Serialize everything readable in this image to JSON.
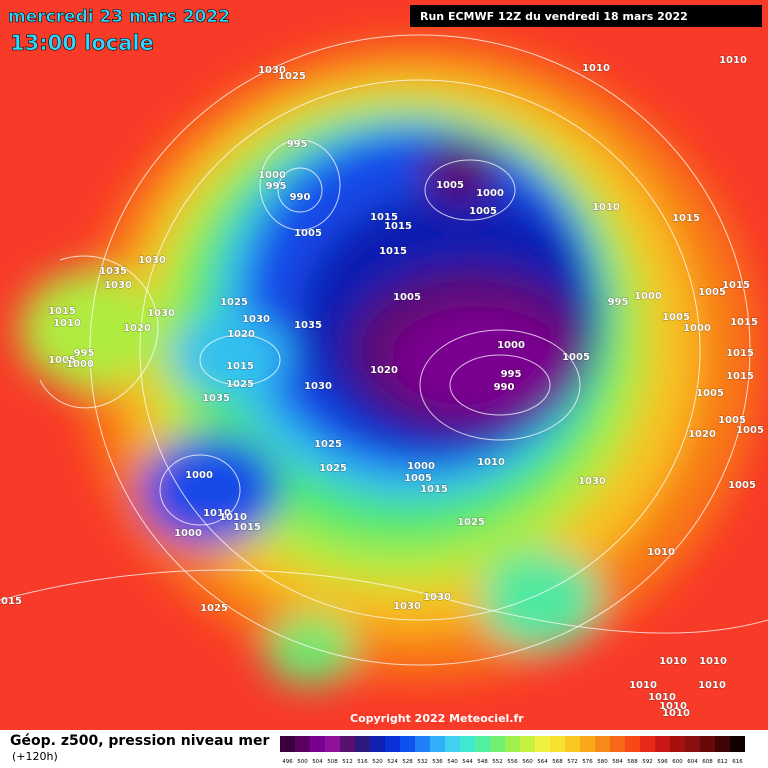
{
  "header": {
    "date": "mercredi 23 mars 2022",
    "time": "13:00 locale",
    "run": "Run ECMWF 12Z du vendredi 18 mars 2022"
  },
  "copyright": "Copyright 2022 Meteociel.fr",
  "footer": {
    "title": "Géop. z500, pression niveau mer",
    "lead": "(+120h)"
  },
  "colorbar": {
    "ticks": [
      496,
      500,
      504,
      508,
      512,
      516,
      520,
      524,
      528,
      532,
      536,
      540,
      544,
      548,
      552,
      556,
      560,
      564,
      568,
      572,
      576,
      580,
      584,
      588,
      592,
      596,
      600,
      604,
      608,
      612,
      616
    ],
    "colors": [
      "#3a0040",
      "#5a0060",
      "#7a0090",
      "#90109a",
      "#5a106e",
      "#2a1a80",
      "#1020b0",
      "#0a30d8",
      "#1050f0",
      "#2080f8",
      "#30b0f8",
      "#40d0f0",
      "#40e8d0",
      "#50f0a0",
      "#70f070",
      "#a0f050",
      "#c8f040",
      "#f0f040",
      "#f8e030",
      "#f8c820",
      "#f8a818",
      "#f88818",
      "#f86818",
      "#f84818",
      "#e82818",
      "#c81818",
      "#a81010",
      "#881010",
      "#680808",
      "#400404",
      "#100000"
    ]
  },
  "labels": [
    1030,
    1025,
    1010,
    1010,
    995,
    1000,
    995,
    990,
    1005,
    1000,
    1005,
    1010,
    1015,
    1015,
    1015,
    1005,
    1015,
    1030,
    1035,
    1030,
    1025,
    1005,
    995,
    1000,
    1005,
    1015,
    1015,
    1010,
    1030,
    1020,
    1030,
    1035,
    1020,
    1005,
    1000,
    1015,
    1000,
    995,
    1005,
    1000,
    1015,
    1020,
    1005,
    1015,
    995,
    990,
    1030,
    1025,
    1035,
    1015,
    1005,
    1005,
    1020,
    1005,
    1025,
    1025,
    1010,
    1000,
    1005,
    1030,
    1000,
    1015,
    1005,
    1010,
    1010,
    1015,
    1000,
    1025,
    1010,
    1015,
    1025,
    1030,
    1030,
    1010,
    1010,
    1010,
    1010,
    1010,
    1010,
    1010
  ]
}
